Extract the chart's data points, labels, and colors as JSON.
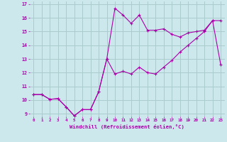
{
  "xlabel": "Windchill (Refroidissement éolien,°C)",
  "bg_color": "#cce8ed",
  "grid_color": "#aacccc",
  "line_color": "#aa00aa",
  "xlim": [
    -0.5,
    23.5
  ],
  "ylim": [
    8.8,
    17.2
  ],
  "xticks": [
    0,
    1,
    2,
    3,
    4,
    5,
    6,
    7,
    8,
    9,
    10,
    11,
    12,
    13,
    14,
    15,
    16,
    17,
    18,
    19,
    20,
    21,
    22,
    23
  ],
  "yticks": [
    9,
    10,
    11,
    12,
    13,
    14,
    15,
    16,
    17
  ],
  "line1_x": [
    0,
    1,
    2,
    3,
    4,
    5,
    6,
    7,
    8,
    9,
    10,
    11,
    12,
    13,
    14,
    15,
    16,
    17,
    18,
    19,
    20,
    21,
    22,
    23
  ],
  "line1_y": [
    10.4,
    10.4,
    10.05,
    10.1,
    9.5,
    8.85,
    9.3,
    9.3,
    10.6,
    13.0,
    11.9,
    12.1,
    11.9,
    12.4,
    12.0,
    11.9,
    12.4,
    12.9,
    13.5,
    14.0,
    14.5,
    15.0,
    15.8,
    12.6
  ],
  "line2_x": [
    0,
    1,
    2,
    3,
    4,
    5,
    6,
    7,
    8,
    9,
    10,
    11,
    12,
    13,
    14,
    15,
    16,
    17,
    18,
    19,
    20,
    21,
    22,
    23
  ],
  "line2_y": [
    10.4,
    10.4,
    10.05,
    10.1,
    9.5,
    8.85,
    9.3,
    9.3,
    10.6,
    13.0,
    16.7,
    16.2,
    15.6,
    16.2,
    15.1,
    15.1,
    15.2,
    14.8,
    14.6,
    14.9,
    15.0,
    15.1,
    15.8,
    15.8
  ]
}
